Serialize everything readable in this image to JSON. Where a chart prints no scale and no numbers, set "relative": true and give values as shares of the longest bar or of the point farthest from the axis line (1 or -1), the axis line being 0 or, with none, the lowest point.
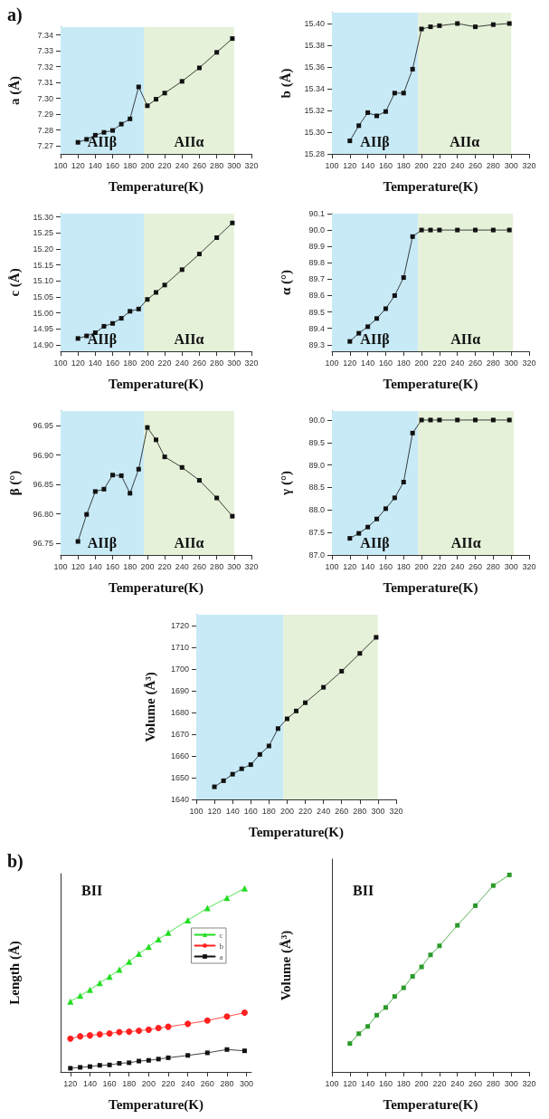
{
  "chart_data": [
    {
      "type": "line",
      "title": "a)",
      "xlabel": "Temperature(K)",
      "ylabel": "a (Å)",
      "x": [
        120,
        130,
        140,
        150,
        160,
        170,
        180,
        190,
        200,
        210,
        220,
        240,
        260,
        280,
        298
      ],
      "values": [
        7.2723,
        7.2742,
        7.2768,
        7.2786,
        7.2798,
        7.2838,
        7.2871,
        7.3073,
        7.2954,
        7.2995,
        7.3034,
        7.3108,
        7.3193,
        7.3291,
        7.3378
      ],
      "color": "#111111",
      "xlim": [
        100,
        320
      ],
      "xticks": [
        100,
        120,
        140,
        160,
        180,
        200,
        220,
        240,
        260,
        280,
        300,
        320
      ],
      "ylim": [
        7.265,
        7.345
      ],
      "yticks": [
        7.27,
        7.28,
        7.29,
        {
          "value": 7.3,
          "label": "7.30"
        },
        7.31,
        7.32,
        7.33,
        7.34
      ],
      "bands": [
        {
          "axis": "x",
          "from": 100,
          "to": 196,
          "label": "AIIβ",
          "color": "#c8eaf7"
        },
        {
          "axis": "x",
          "from": 196,
          "to": 300,
          "label": "AIIα",
          "color": "#e5f1d9"
        }
      ],
      "marker": "square",
      "line_style": "solid",
      "grid": false,
      "legend": false
    },
    {
      "type": "line",
      "xlabel": "Temperature(K)",
      "ylabel": "b (Å)",
      "x": [
        120,
        130,
        140,
        150,
        160,
        170,
        180,
        190,
        200,
        210,
        220,
        240,
        260,
        280,
        298
      ],
      "values": [
        15.292,
        15.306,
        15.318,
        15.315,
        15.319,
        15.336,
        15.336,
        15.358,
        15.395,
        15.397,
        15.398,
        15.4,
        15.397,
        15.399,
        15.4
      ],
      "color": "#111111",
      "xlim": [
        100,
        320
      ],
      "xticks": [
        100,
        120,
        140,
        160,
        180,
        200,
        220,
        240,
        260,
        280,
        300,
        320
      ],
      "ylim": [
        15.28,
        15.41
      ],
      "yticks": [
        15.28,
        {
          "value": 15.3,
          "label": "15.30"
        },
        15.32,
        15.34,
        15.36,
        15.38,
        {
          "value": 15.4,
          "label": "15.40"
        }
      ],
      "bands": [
        {
          "axis": "x",
          "from": 100,
          "to": 196,
          "label": "AIIβ",
          "color": "#c8eaf7"
        },
        {
          "axis": "x",
          "from": 196,
          "to": 300,
          "label": "AIIα",
          "color": "#e5f1d9"
        }
      ],
      "marker": "square",
      "line_style": "solid",
      "grid": false,
      "legend": false
    },
    {
      "type": "line",
      "xlabel": "Temperature(K)",
      "ylabel": "c (Å)",
      "x": [
        120,
        130,
        140,
        150,
        160,
        170,
        180,
        190,
        200,
        210,
        220,
        240,
        260,
        280,
        298
      ],
      "values": [
        14.92,
        14.928,
        14.938,
        14.958,
        14.967,
        14.983,
        15.005,
        15.012,
        15.042,
        15.064,
        15.087,
        15.135,
        15.184,
        15.235,
        15.281
      ],
      "color": "#111111",
      "xlim": [
        100,
        320
      ],
      "xticks": [
        100,
        120,
        140,
        160,
        180,
        200,
        220,
        240,
        260,
        280,
        300,
        320
      ],
      "ylim": [
        14.88,
        15.31
      ],
      "yticks": [
        {
          "value": 14.9,
          "label": "14.90"
        },
        14.95,
        {
          "value": 15,
          "label": "15.00"
        },
        15.05,
        {
          "value": 15.1,
          "label": "15.10"
        },
        15.15,
        {
          "value": 15.2,
          "label": "15.20"
        },
        15.25,
        {
          "value": 15.3,
          "label": "15.30"
        }
      ],
      "bands": [
        {
          "axis": "x",
          "from": 100,
          "to": 196,
          "label": "AIIβ",
          "color": "#c8eaf7"
        },
        {
          "axis": "x",
          "from": 196,
          "to": 300,
          "label": "AIIα",
          "color": "#e5f1d9"
        }
      ],
      "marker": "square",
      "line_style": "solid",
      "grid": false,
      "legend": false
    },
    {
      "type": "line",
      "xlabel": "Temperature(K)",
      "ylabel": "α (°)",
      "x": [
        120,
        130,
        140,
        150,
        160,
        170,
        180,
        190,
        200,
        210,
        220,
        240,
        260,
        280,
        298
      ],
      "values": [
        89.32,
        89.37,
        89.41,
        89.46,
        89.52,
        89.6,
        89.71,
        89.96,
        90,
        90,
        90,
        90,
        90,
        90,
        90
      ],
      "color": "#111111",
      "xlim": [
        100,
        320
      ],
      "xticks": [
        100,
        120,
        140,
        160,
        180,
        200,
        220,
        240,
        260,
        280,
        300,
        320
      ],
      "ylim": [
        89.26,
        90.1
      ],
      "yticks": [
        89.3,
        89.4,
        89.5,
        89.6,
        89.7,
        89.8,
        89.9,
        {
          "value": 90,
          "label": "90.0"
        },
        90.1
      ],
      "bands": [
        {
          "axis": "x",
          "from": 100,
          "to": 196,
          "label": "AIIβ",
          "color": "#c8eaf7"
        },
        {
          "axis": "x",
          "from": 196,
          "to": 302,
          "label": "AIIα",
          "color": "#e5f1d9"
        }
      ],
      "marker": "square",
      "line_style": "solid",
      "grid": false,
      "legend": false
    },
    {
      "type": "line",
      "xlabel": "Temperature(K)",
      "ylabel": "β (°)",
      "x": [
        120,
        130,
        140,
        150,
        160,
        170,
        180,
        190,
        200,
        210,
        220,
        240,
        260,
        280,
        298
      ],
      "values": [
        96.753,
        96.799,
        96.838,
        96.842,
        96.866,
        96.865,
        96.835,
        96.876,
        96.947,
        96.926,
        96.897,
        96.879,
        96.857,
        96.827,
        96.796
      ],
      "color": "#111111",
      "xlim": [
        100,
        320
      ],
      "xticks": [
        100,
        120,
        140,
        160,
        180,
        200,
        220,
        240,
        260,
        280,
        300,
        320
      ],
      "ylim": [
        96.73,
        96.975
      ],
      "yticks": [
        96.75,
        {
          "value": 96.8,
          "label": "96.80"
        },
        96.85,
        {
          "value": 96.9,
          "label": "96.90"
        },
        96.95
      ],
      "bands": [
        {
          "axis": "x",
          "from": 100,
          "to": 196,
          "label": "AIIβ",
          "color": "#c8eaf7"
        },
        {
          "axis": "x",
          "from": 196,
          "to": 300,
          "label": "AIIα",
          "color": "#e5f1d9"
        }
      ],
      "marker": "square",
      "line_style": "solid",
      "grid": false,
      "legend": false
    },
    {
      "type": "line",
      "xlabel": "Temperature(K)",
      "ylabel": "γ (°)",
      "x": [
        120,
        130,
        140,
        150,
        160,
        170,
        180,
        190,
        200,
        210,
        220,
        240,
        260,
        280,
        298
      ],
      "values": [
        87.37,
        87.48,
        87.62,
        87.8,
        88.03,
        88.27,
        88.62,
        89.71,
        90,
        90,
        90,
        90,
        90,
        90,
        90
      ],
      "color": "#111111",
      "xlim": [
        100,
        320
      ],
      "xticks": [
        100,
        120,
        140,
        160,
        180,
        200,
        220,
        240,
        260,
        280,
        300,
        320
      ],
      "ylim": [
        87,
        90.2
      ],
      "yticks": [
        {
          "value": 87,
          "label": "87.0"
        },
        87.5,
        {
          "value": 88,
          "label": "88.0"
        },
        88.5,
        {
          "value": 89,
          "label": "89.0"
        },
        89.5,
        {
          "value": 90,
          "label": "90.0"
        }
      ],
      "bands": [
        {
          "axis": "x",
          "from": 100,
          "to": 196,
          "label": "AIIβ",
          "color": "#c8eaf7"
        },
        {
          "axis": "x",
          "from": 196,
          "to": 303,
          "label": "AIIα",
          "color": "#e5f1d9"
        }
      ],
      "marker": "square",
      "line_style": "solid",
      "grid": false,
      "legend": false
    },
    {
      "type": "line",
      "xlabel": "Temperature(K)",
      "ylabel": "Volume (Å³)",
      "x": [
        120,
        130,
        140,
        150,
        160,
        170,
        180,
        190,
        200,
        210,
        220,
        240,
        260,
        280,
        298
      ],
      "values": [
        1645.8,
        1648.6,
        1651.6,
        1654.1,
        1656,
        1660.7,
        1664.6,
        1672.6,
        1677.1,
        1680.7,
        1684.5,
        1691.6,
        1699,
        1707.2,
        1714.6
      ],
      "color": "#111111",
      "xlim": [
        100,
        320
      ],
      "xticks": [
        100,
        120,
        140,
        160,
        180,
        200,
        220,
        240,
        260,
        280,
        300,
        320
      ],
      "ylim": [
        1640,
        1725
      ],
      "yticks": [
        1640,
        1650,
        1660,
        1670,
        1680,
        1690,
        1700,
        1710,
        1720
      ],
      "bands": [
        {
          "axis": "x",
          "from": 100,
          "to": 196,
          "color": "#c8eaf7"
        },
        {
          "axis": "x",
          "from": 196,
          "to": 300,
          "color": "#e5f1d9"
        }
      ],
      "marker": "square",
      "line_style": "solid",
      "grid": false,
      "legend": false
    },
    {
      "type": "line",
      "title": "b)",
      "xlabel": "Temperature(K)",
      "ylabel": "Length (Å)",
      "annotations": [
        "BII"
      ],
      "relative": true,
      "tick_labels": "x",
      "x": [
        120,
        130,
        140,
        150,
        160,
        170,
        180,
        190,
        200,
        210,
        220,
        240,
        260,
        280,
        298
      ],
      "xlim": [
        110,
        305
      ],
      "xticks": [
        120,
        140,
        160,
        180,
        200,
        220,
        240,
        260,
        280,
        300
      ],
      "series": [
        {
          "name": "c",
          "color": "#22dd22",
          "marker": "triangle",
          "values": [
            0.384,
            0.415,
            0.447,
            0.485,
            0.519,
            0.557,
            0.6,
            0.643,
            0.682,
            0.722,
            0.758,
            0.826,
            0.892,
            0.948,
            1
          ]
        },
        {
          "name": "b",
          "color": "#ff2020",
          "marker": "circle",
          "values": [
            0.181,
            0.194,
            0.199,
            0.205,
            0.21,
            0.217,
            0.219,
            0.224,
            0.23,
            0.239,
            0.246,
            0.262,
            0.28,
            0.302,
            0.323
          ]
        },
        {
          "name": "a",
          "color": "#111111",
          "marker": "square",
          "values": [
            0.02,
            0.025,
            0.029,
            0.036,
            0.038,
            0.047,
            0.05,
            0.059,
            0.063,
            0.07,
            0.077,
            0.09,
            0.104,
            0.122,
            0.115
          ]
        }
      ],
      "line_style": "solid",
      "grid": false,
      "legend": "top right"
    },
    {
      "type": "line",
      "xlabel": "Temperature(K)",
      "ylabel": "Volume (Å³)",
      "annotations": [
        "BII"
      ],
      "relative": true,
      "tick_labels": "x",
      "x": [
        120,
        130,
        140,
        150,
        160,
        170,
        180,
        190,
        200,
        210,
        220,
        240,
        260,
        280,
        298
      ],
      "values": [
        0.144,
        0.194,
        0.231,
        0.288,
        0.327,
        0.383,
        0.427,
        0.485,
        0.533,
        0.594,
        0.64,
        0.744,
        0.844,
        0.946,
        1
      ],
      "color": "#2a9a2a",
      "xlim": [
        100,
        320
      ],
      "xticks": [
        100,
        120,
        140,
        160,
        180,
        200,
        220,
        240,
        260,
        280,
        300,
        320
      ],
      "marker": "square",
      "line_style": "solid",
      "grid": false,
      "legend": false
    }
  ]
}
